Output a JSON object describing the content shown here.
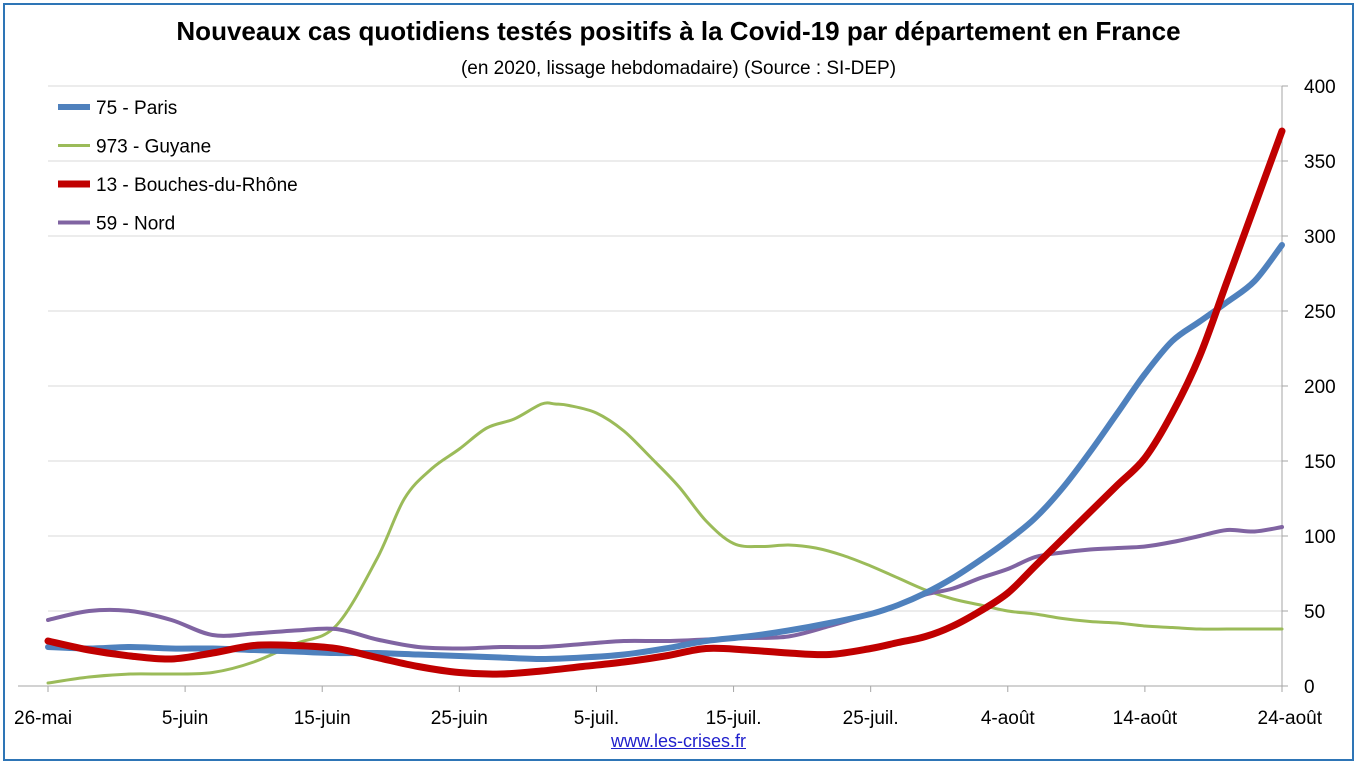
{
  "chart": {
    "title": "Nouveaux cas quotidiens testés positifs à la Covid-19 par département en France",
    "subtitle": "(en 2020, lissage hebdomadaire) (Source : SI-DEP)",
    "source_link": "www.les-crises.fr"
  },
  "chart_data": {
    "type": "line",
    "title": "Nouveaux cas quotidiens testés positifs à la Covid-19 par département en France",
    "subtitle": "(en 2020, lissage hebdomadaire) (Source : SI-DEP)",
    "x_tick_labels": [
      "26-mai",
      "5-juin",
      "15-juin",
      "25-juin",
      "5-juil.",
      "15-juil.",
      "25-juil.",
      "4-août",
      "14-août",
      "24-août"
    ],
    "x_range_days": [
      0,
      90
    ],
    "y_ticks": [
      0,
      50,
      100,
      150,
      200,
      250,
      300,
      350,
      400
    ],
    "ylim": [
      0,
      400
    ],
    "y_axis_side": "right",
    "grid": "horizontal",
    "legend_position": "top-left",
    "series": [
      {
        "name": "75 - Paris",
        "color": "#4f81bd",
        "x": [
          0,
          3,
          6,
          9,
          12,
          15,
          18,
          21,
          24,
          27,
          30,
          33,
          36,
          39,
          42,
          45,
          48,
          51,
          54,
          57,
          60,
          62,
          64,
          66,
          68,
          70,
          72,
          74,
          76,
          78,
          80,
          82,
          84,
          86,
          88,
          90
        ],
        "values": [
          26,
          25,
          26,
          25,
          25,
          24,
          23,
          22,
          22,
          21,
          20,
          19,
          18,
          19,
          21,
          25,
          30,
          33,
          37,
          42,
          48,
          54,
          62,
          72,
          84,
          97,
          112,
          132,
          156,
          182,
          208,
          230,
          243,
          256,
          270,
          294
        ]
      },
      {
        "name": "973 - Guyane",
        "color": "#9bbb59",
        "x": [
          0,
          3,
          6,
          9,
          12,
          15,
          18,
          21,
          24,
          26,
          28,
          30,
          32,
          34,
          36,
          37,
          38,
          40,
          42,
          44,
          46,
          48,
          50,
          52,
          54,
          56,
          58,
          60,
          62,
          64,
          66,
          68,
          70,
          72,
          74,
          76,
          78,
          80,
          82,
          84,
          86,
          88,
          90
        ],
        "values": [
          2,
          6,
          8,
          8,
          9,
          16,
          28,
          40,
          85,
          125,
          145,
          158,
          172,
          178,
          188,
          188,
          187,
          182,
          170,
          152,
          133,
          110,
          95,
          93,
          94,
          92,
          87,
          80,
          72,
          64,
          58,
          54,
          50,
          48,
          45,
          43,
          42,
          40,
          39,
          38,
          38,
          38,
          38
        ]
      },
      {
        "name": "13 - Bouches-du-Rhône",
        "color": "#c00000",
        "x": [
          0,
          3,
          6,
          9,
          12,
          15,
          18,
          21,
          24,
          27,
          30,
          33,
          36,
          39,
          42,
          45,
          48,
          51,
          54,
          57,
          60,
          62,
          64,
          66,
          68,
          70,
          72,
          74,
          76,
          78,
          80,
          82,
          84,
          86,
          88,
          90
        ],
        "values": [
          30,
          24,
          20,
          18,
          22,
          27,
          27,
          25,
          19,
          13,
          9,
          8,
          10,
          13,
          16,
          20,
          25,
          24,
          22,
          21,
          25,
          29,
          33,
          40,
          50,
          62,
          80,
          98,
          116,
          134,
          152,
          182,
          220,
          270,
          320,
          370
        ]
      },
      {
        "name": "59 - Nord",
        "color": "#8064a2",
        "x": [
          0,
          3,
          6,
          9,
          12,
          15,
          18,
          21,
          24,
          27,
          30,
          33,
          36,
          39,
          42,
          45,
          48,
          51,
          54,
          57,
          60,
          62,
          64,
          66,
          68,
          70,
          72,
          74,
          76,
          78,
          80,
          82,
          84,
          86,
          88,
          90
        ],
        "values": [
          44,
          50,
          50,
          44,
          34,
          35,
          37,
          38,
          31,
          26,
          25,
          26,
          26,
          28,
          30,
          30,
          31,
          32,
          33,
          40,
          48,
          54,
          61,
          65,
          72,
          78,
          86,
          89,
          91,
          92,
          93,
          96,
          100,
          104,
          103,
          106
        ]
      }
    ]
  }
}
